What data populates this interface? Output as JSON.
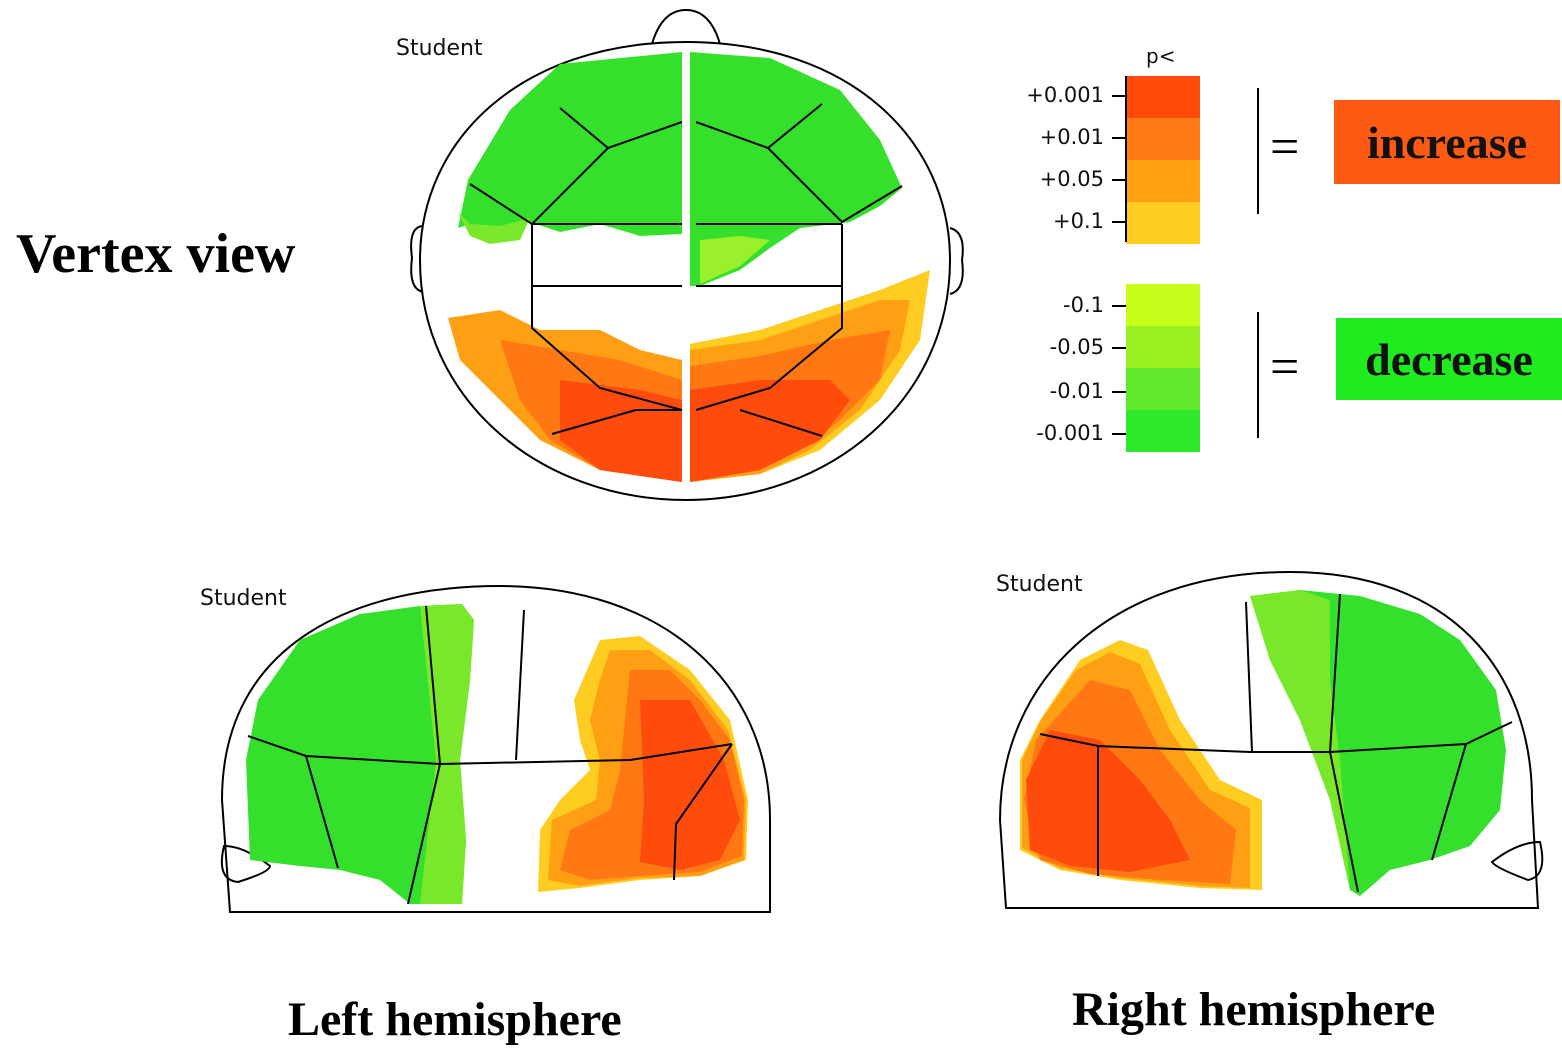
{
  "labels": {
    "vertex_view": "Vertex view",
    "left_hemisphere": "Left hemisphere",
    "right_hemisphere": "Right hemisphere",
    "student_top": "Student",
    "student_left": "Student",
    "student_right": "Student"
  },
  "scale": {
    "header": "p<",
    "positive_ticks": [
      "+0.001",
      "+0.01",
      "+0.05",
      "+0.1"
    ],
    "negative_ticks": [
      "-0.1",
      "-0.05",
      "-0.01",
      "-0.001"
    ],
    "positive_colors": [
      "#ff4a0a",
      "#ff7a12",
      "#ffa012",
      "#ffcc22"
    ],
    "negative_colors": [
      "#c8ff1a",
      "#98f020",
      "#60e82a",
      "#2ee82a"
    ]
  },
  "legend": {
    "increase": "increase",
    "decrease": "decrease",
    "increase_color": "#ff5a14",
    "decrease_color": "#1eec1e",
    "equals": "="
  }
}
